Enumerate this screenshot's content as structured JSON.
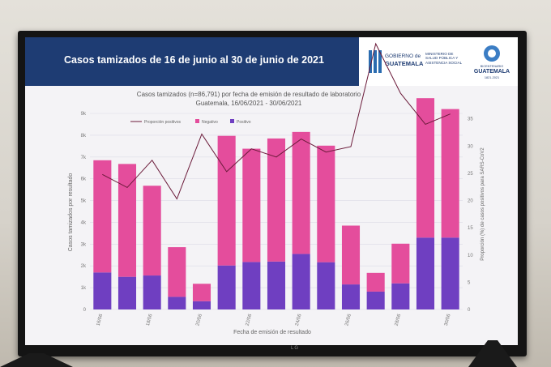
{
  "banner": {
    "title": "Casos tamizados de 16 de junio al 30 de junio de 2021",
    "gov_line1": "GOBIERNO de",
    "gov_line2": "GUATEMALA",
    "ministry": "MINISTERIO DE SALUD PÚBLICA Y ASISTENCIA SOCIAL",
    "logo_line1": "BICENTENARIO",
    "logo_line2": "GUATEMALA",
    "logo_line3": "1821-2021"
  },
  "tv_brand": "LG",
  "colors": {
    "negativo": "#e44d9c",
    "positivo": "#6f3fc1",
    "proporcion": "#6b1b3a",
    "banner": "#1e3c73"
  },
  "chart_data": {
    "type": "bar",
    "stacked": true,
    "title": "Casos tamizados (n=86,791) por fecha de emisión de resultado de laboratorio",
    "subtitle": "Guatemala, 16/06/2021 - 30/06/2021",
    "xlabel": "Fecha de emisión de resultado",
    "ylabel": "Casos tamizados por resultado",
    "y2label": "Proporción (%) de casos positivos para SARS-CoV2",
    "ylim": [
      0,
      9000
    ],
    "y2lim": [
      0,
      36
    ],
    "y_ticks": [
      "0",
      "1k",
      "2k",
      "3k",
      "4k",
      "5k",
      "6k",
      "7k",
      "8k",
      "9k"
    ],
    "y2_ticks": [
      "0",
      "5",
      "10",
      "15",
      "20",
      "25",
      "30",
      "35"
    ],
    "x_tick_labels": [
      "16/06",
      "18/06",
      "20/06",
      "22/06",
      "24/06",
      "26/06",
      "28/06",
      "30/06"
    ],
    "categories": [
      "16/06",
      "17/06",
      "18/06",
      "19/06",
      "20/06",
      "21/06",
      "22/06",
      "23/06",
      "24/06",
      "25/06",
      "26/06",
      "27/06",
      "28/06",
      "29/06",
      "30/06"
    ],
    "legend_position": "top-left",
    "series": [
      {
        "name": "Positivo",
        "values": [
          1700,
          1500,
          1560,
          580,
          380,
          2020,
          2180,
          2200,
          2550,
          2170,
          1150,
          820,
          1200,
          3300,
          3300
        ]
      },
      {
        "name": "Negativo",
        "values": [
          5150,
          5180,
          4120,
          2280,
          800,
          5950,
          5200,
          5650,
          5600,
          5350,
          2700,
          860,
          1820,
          6400,
          5900
        ]
      },
      {
        "name": "Proporción positivos",
        "values": [
          24.8,
          22.4,
          27.4,
          20.3,
          32.2,
          25.3,
          29.5,
          28.0,
          31.3,
          28.9,
          29.9,
          48.8,
          39.7,
          34.0,
          35.9
        ]
      }
    ]
  }
}
